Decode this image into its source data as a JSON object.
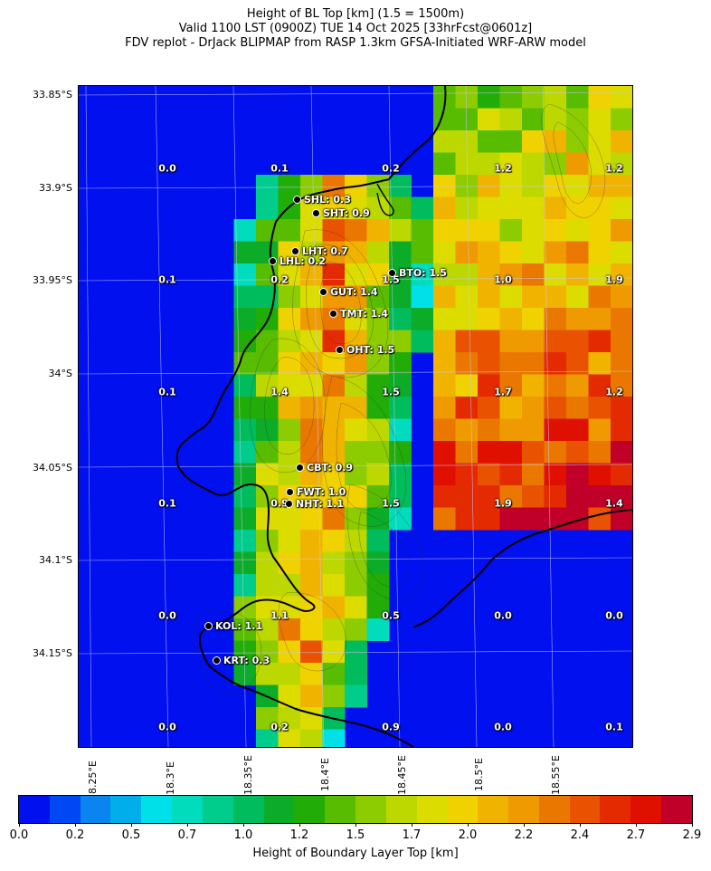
{
  "title": {
    "line1": "Height of BL Top [km] (1.5 = 1500m)",
    "line2": "Valid 1100 LST (0900Z) TUE 14 Oct 2025 [33hrFcst@0601z]",
    "line3": "FDV replot - DrJack BLIPMAP from RASP 1.3km GFSA-Initiated WRF-ARW model"
  },
  "lat_labels": [
    "33.85°S",
    "33.9°S",
    "33.95°S",
    "34°S",
    "34.05°S",
    "34.1°S",
    "34.15°S"
  ],
  "lon_labels": [
    "18.25°E",
    "18.3°E",
    "18.35°E",
    "18.4°E",
    "18.45°E",
    "18.5°E",
    "18.55°E"
  ],
  "grid_values": [
    [
      "0.0",
      "0.1",
      "0.2",
      "1.2",
      "1.2"
    ],
    [
      "0.1",
      "0.2",
      "1.5",
      "1.0",
      "1.9"
    ],
    [
      "0.1",
      "1.4",
      "1.5",
      "1.7",
      "1.2"
    ],
    [
      "0.1",
      "0.9",
      "1.5",
      "1.9",
      "1.4"
    ],
    [
      "0.0",
      "1.1",
      "0.5",
      "0.0",
      "0.0"
    ],
    [
      "0.0",
      "0.2",
      "0.9",
      "0.0",
      "0.1"
    ]
  ],
  "stations": [
    {
      "label": "SHL: 0.3"
    },
    {
      "label": "SHT: 0.9"
    },
    {
      "label": "LHT: 0.7"
    },
    {
      "label": "LHL: 0.2"
    },
    {
      "label": "BTO: 1.5"
    },
    {
      "label": "GUT: 1.4"
    },
    {
      "label": "TMT: 1.4"
    },
    {
      "label": "OHT: 1.5"
    },
    {
      "label": "CBT: 0.9"
    },
    {
      "label": "FWT: 1.0"
    },
    {
      "label": "NHT: 1.1"
    },
    {
      "label": "KOL: 1.1"
    },
    {
      "label": "KRT: 0.3"
    }
  ],
  "colorbar": {
    "title": "Height of Boundary Layer Top [km]",
    "tick_labels": [
      "0.0",
      "0.2",
      "0.5",
      "0.7",
      "1.0",
      "1.2",
      "1.5",
      "1.7",
      "2.0",
      "2.2",
      "2.4",
      "2.7",
      "2.9"
    ],
    "colors": [
      "#0010ee",
      "#0048f4",
      "#0a84ee",
      "#00aeea",
      "#00e0e8",
      "#00dcbc",
      "#00cc8c",
      "#00bc5c",
      "#0cac28",
      "#22ac08",
      "#58bc00",
      "#8ccc00",
      "#bcd800",
      "#dcdc00",
      "#f0d200",
      "#f0b400",
      "#ee9a00",
      "#ea7800",
      "#e85200",
      "#e42a00",
      "#e01000",
      "#c00028"
    ]
  },
  "legend_values": [
    0.0,
    0.1,
    0.2,
    0.3,
    0.4,
    0.5,
    0.6,
    0.7,
    0.8,
    0.9,
    1.0,
    1.1,
    1.2,
    1.3,
    1.4,
    1.5,
    1.6,
    1.7,
    1.8,
    1.9,
    2.0,
    2.1,
    2.2
  ]
}
